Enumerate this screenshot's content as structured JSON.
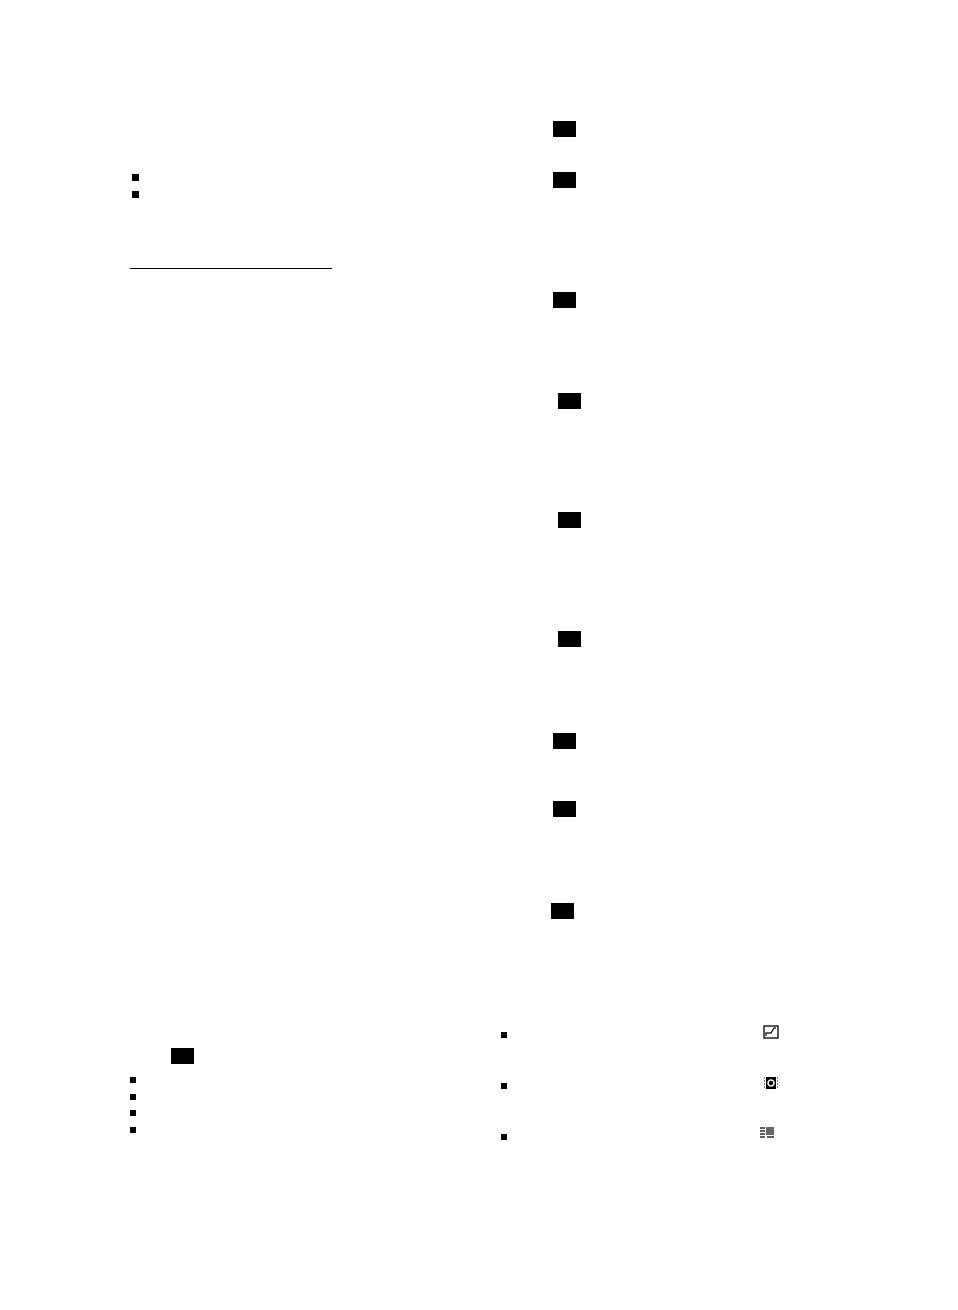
{
  "document": {
    "icons": [
      "resize-icon",
      "settings-chip-icon",
      "barcode-icon"
    ],
    "text_color": "#000000",
    "background": "#ffffff"
  }
}
